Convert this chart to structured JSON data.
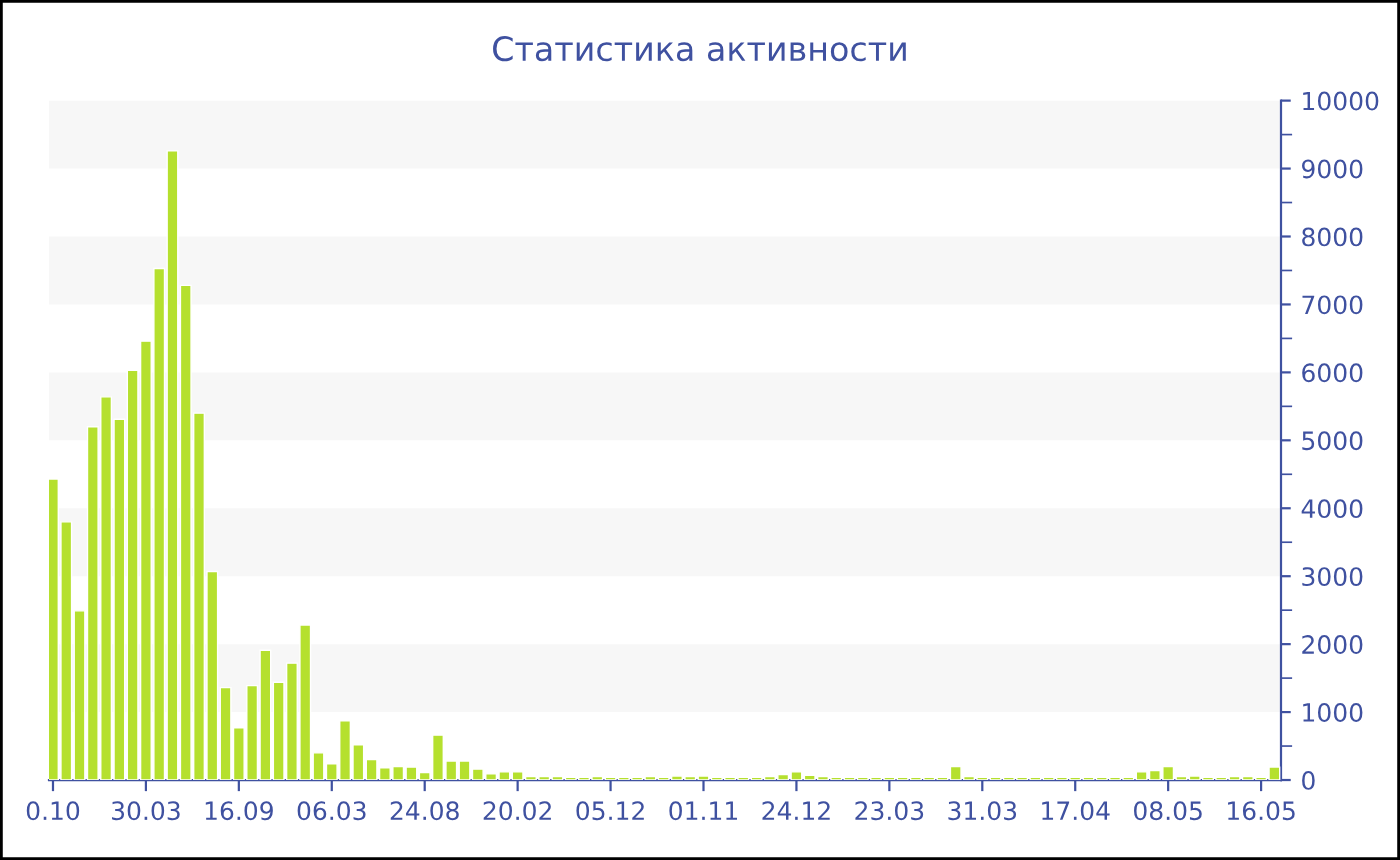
{
  "chart_data": {
    "type": "bar",
    "title": "Статистика активности",
    "categories": [
      "0.10",
      null,
      null,
      null,
      null,
      null,
      null,
      "30.03",
      null,
      null,
      null,
      null,
      null,
      null,
      "16.09",
      null,
      null,
      null,
      null,
      null,
      null,
      "06.03",
      null,
      null,
      null,
      null,
      null,
      null,
      "24.08",
      null,
      null,
      null,
      null,
      null,
      null,
      "20.02",
      null,
      null,
      null,
      null,
      null,
      null,
      "05.12",
      null,
      null,
      null,
      null,
      null,
      null,
      "01.11",
      null,
      null,
      null,
      null,
      null,
      null,
      "24.12",
      null,
      null,
      null,
      null,
      null,
      null,
      "23.03",
      null,
      null,
      null,
      null,
      null,
      null,
      "31.03",
      null,
      null,
      null,
      null,
      null,
      null,
      "17.04",
      null,
      null,
      null,
      null,
      null,
      null,
      "08.05",
      null,
      null,
      null,
      null,
      null,
      null,
      "16.05",
      null
    ],
    "values": [
      4430,
      3800,
      2490,
      5200,
      5640,
      5310,
      6030,
      6460,
      7530,
      9260,
      7280,
      5400,
      3070,
      1360,
      770,
      1390,
      1910,
      1440,
      1720,
      2280,
      400,
      240,
      870,
      520,
      300,
      180,
      200,
      190,
      110,
      660,
      280,
      280,
      160,
      90,
      120,
      120,
      50,
      50,
      50,
      40,
      40,
      50,
      40,
      40,
      40,
      50,
      40,
      60,
      50,
      60,
      40,
      40,
      40,
      40,
      50,
      80,
      120,
      70,
      50,
      40,
      40,
      40,
      40,
      40,
      40,
      40,
      40,
      40,
      200,
      50,
      40,
      40,
      40,
      40,
      40,
      40,
      40,
      40,
      40,
      40,
      40,
      40,
      120,
      140,
      200,
      50,
      60,
      40,
      40,
      50,
      50,
      40,
      190
    ],
    "color": "#b5e02e",
    "ylim": [
      0,
      10000
    ],
    "yticks": [
      0,
      1000,
      2000,
      3000,
      4000,
      5000,
      6000,
      7000,
      8000,
      9000,
      10000
    ],
    "bands": [
      {
        "axis": "y",
        "from": 1000,
        "to": 2000,
        "color": "#f7f7f7"
      },
      {
        "axis": "y",
        "from": 3000,
        "to": 4000,
        "color": "#f7f7f7"
      },
      {
        "axis": "y",
        "from": 5000,
        "to": 6000,
        "color": "#f7f7f7"
      },
      {
        "axis": "y",
        "from": 7000,
        "to": 8000,
        "color": "#f7f7f7"
      },
      {
        "axis": "y",
        "from": 9000,
        "to": 10000,
        "color": "#f7f7f7"
      }
    ],
    "grid": false,
    "legend": false
  }
}
